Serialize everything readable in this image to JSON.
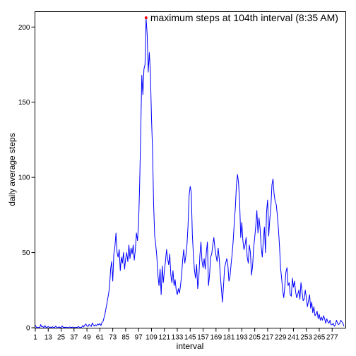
{
  "chart_data": {
    "type": "line",
    "title": "",
    "xlabel": "interval",
    "ylabel": "daily average steps",
    "xlim": [
      1,
      288
    ],
    "ylim": [
      0,
      210
    ],
    "grid": false,
    "line_color": "#0000ff",
    "marker_color": "#ff0000",
    "x_ticks": [
      1,
      13,
      25,
      37,
      49,
      61,
      73,
      85,
      97,
      109,
      121,
      133,
      145,
      157,
      169,
      181,
      193,
      205,
      217,
      229,
      241,
      253,
      265,
      277
    ],
    "x_tick_labels": [
      "1",
      "13",
      "25",
      "37",
      "49",
      "61",
      "73",
      "85",
      "97",
      "109",
      "121",
      "133",
      "145",
      "157",
      "169",
      "181",
      "193",
      "205",
      "217",
      "229",
      "241",
      "253",
      "265",
      "277"
    ],
    "y_ticks": [
      0,
      50,
      100,
      150,
      200
    ],
    "y_tick_labels": [
      "0",
      "50",
      "100",
      "150",
      "200"
    ],
    "series": [
      {
        "points": [
          [
            1,
            1.7
          ],
          [
            2,
            0.3
          ],
          [
            3,
            0.1
          ],
          [
            4,
            0.2
          ],
          [
            5,
            0.1
          ],
          [
            6,
            2.1
          ],
          [
            7,
            0.5
          ],
          [
            8,
            0.9
          ],
          [
            9,
            0
          ],
          [
            10,
            1.5
          ],
          [
            11,
            0.2
          ],
          [
            12,
            0.3
          ],
          [
            13,
            0.9
          ],
          [
            14,
            0.2
          ],
          [
            15,
            0.4
          ],
          [
            16,
            0.1
          ],
          [
            17,
            0.7
          ],
          [
            18,
            0
          ],
          [
            19,
            0.3
          ],
          [
            20,
            1.1
          ],
          [
            21,
            0.2
          ],
          [
            22,
            0
          ],
          [
            23,
            0.6
          ],
          [
            24,
            0.1
          ],
          [
            25,
            0.3
          ],
          [
            26,
            1.2
          ],
          [
            27,
            0.1
          ],
          [
            28,
            0.3
          ],
          [
            29,
            0.2
          ],
          [
            30,
            0.4
          ],
          [
            31,
            0.1
          ],
          [
            32,
            0.2
          ],
          [
            33,
            0.5
          ],
          [
            34,
            0.1
          ],
          [
            35,
            0.3
          ],
          [
            36,
            0.4
          ],
          [
            37,
            0.2
          ],
          [
            38,
            0.1
          ],
          [
            39,
            0.3
          ],
          [
            40,
            0.2
          ],
          [
            41,
            0.8
          ],
          [
            42,
            0.3
          ],
          [
            43,
            0.1
          ],
          [
            44,
            0.2
          ],
          [
            45,
            1.5
          ],
          [
            46,
            0.5
          ],
          [
            47,
            1.8
          ],
          [
            48,
            2.5
          ],
          [
            49,
            1.2
          ],
          [
            50,
            0.8
          ],
          [
            51,
            2.2
          ],
          [
            52,
            1.5
          ],
          [
            53,
            0.9
          ],
          [
            54,
            3.2
          ],
          [
            55,
            1.8
          ],
          [
            56,
            1.1
          ],
          [
            57,
            2.0
          ],
          [
            58,
            1.4
          ],
          [
            59,
            2.6
          ],
          [
            60,
            1.9
          ],
          [
            61,
            2.8
          ],
          [
            62,
            1.5
          ],
          [
            63,
            3.5
          ],
          [
            64,
            4.2
          ],
          [
            65,
            7
          ],
          [
            66,
            10
          ],
          [
            67,
            14
          ],
          [
            68,
            18
          ],
          [
            69,
            22
          ],
          [
            70,
            27
          ],
          [
            71,
            39
          ],
          [
            72,
            44
          ],
          [
            73,
            31
          ],
          [
            74,
            49
          ],
          [
            75,
            54
          ],
          [
            76,
            63
          ],
          [
            77,
            50
          ],
          [
            78,
            47
          ],
          [
            79,
            52
          ],
          [
            80,
            38
          ],
          [
            81,
            47
          ],
          [
            82,
            43
          ],
          [
            83,
            50
          ],
          [
            84,
            39
          ],
          [
            85,
            46
          ],
          [
            86,
            50
          ],
          [
            87,
            44
          ],
          [
            88,
            55
          ],
          [
            89,
            46
          ],
          [
            90,
            53
          ],
          [
            91,
            49
          ],
          [
            92,
            55
          ],
          [
            93,
            45
          ],
          [
            94,
            52
          ],
          [
            95,
            63
          ],
          [
            96,
            58
          ],
          [
            97,
            69
          ],
          [
            98,
            95
          ],
          [
            99,
            130
          ],
          [
            100,
            168
          ],
          [
            101,
            155
          ],
          [
            102,
            172
          ],
          [
            103,
            175
          ],
          [
            104,
            206
          ],
          [
            105,
            195
          ],
          [
            106,
            170
          ],
          [
            107,
            183
          ],
          [
            108,
            170
          ],
          [
            109,
            140
          ],
          [
            110,
            118
          ],
          [
            111,
            82
          ],
          [
            112,
            61
          ],
          [
            113,
            55
          ],
          [
            114,
            47
          ],
          [
            115,
            35
          ],
          [
            116,
            28
          ],
          [
            117,
            39
          ],
          [
            118,
            22
          ],
          [
            119,
            41
          ],
          [
            120,
            30
          ],
          [
            121,
            38
          ],
          [
            122,
            44
          ],
          [
            123,
            52
          ],
          [
            124,
            46
          ],
          [
            125,
            42
          ],
          [
            126,
            49
          ],
          [
            127,
            35
          ],
          [
            128,
            30
          ],
          [
            129,
            38
          ],
          [
            130,
            28
          ],
          [
            131,
            32
          ],
          [
            132,
            25
          ],
          [
            133,
            22
          ],
          [
            134,
            26
          ],
          [
            135,
            23
          ],
          [
            136,
            28
          ],
          [
            137,
            35
          ],
          [
            138,
            45
          ],
          [
            139,
            52
          ],
          [
            140,
            43
          ],
          [
            141,
            48
          ],
          [
            142,
            55
          ],
          [
            143,
            68
          ],
          [
            144,
            88
          ],
          [
            145,
            94
          ],
          [
            146,
            90
          ],
          [
            147,
            62
          ],
          [
            148,
            48
          ],
          [
            149,
            38
          ],
          [
            150,
            33
          ],
          [
            151,
            42
          ],
          [
            152,
            26
          ],
          [
            153,
            33
          ],
          [
            154,
            48
          ],
          [
            155,
            57
          ],
          [
            156,
            44
          ],
          [
            157,
            40
          ],
          [
            158,
            46
          ],
          [
            159,
            39
          ],
          [
            160,
            50
          ],
          [
            161,
            57
          ],
          [
            162,
            28
          ],
          [
            163,
            35
          ],
          [
            164,
            47
          ],
          [
            165,
            49
          ],
          [
            166,
            55
          ],
          [
            167,
            60
          ],
          [
            168,
            53
          ],
          [
            169,
            48
          ],
          [
            170,
            44
          ],
          [
            171,
            53
          ],
          [
            172,
            46
          ],
          [
            173,
            35
          ],
          [
            174,
            26
          ],
          [
            175,
            17
          ],
          [
            176,
            28
          ],
          [
            177,
            40
          ],
          [
            178,
            43
          ],
          [
            179,
            46
          ],
          [
            180,
            42
          ],
          [
            181,
            31
          ],
          [
            182,
            34
          ],
          [
            183,
            42
          ],
          [
            184,
            49
          ],
          [
            185,
            58
          ],
          [
            186,
            70
          ],
          [
            187,
            80
          ],
          [
            188,
            95
          ],
          [
            189,
            102
          ],
          [
            190,
            96
          ],
          [
            191,
            83
          ],
          [
            192,
            60
          ],
          [
            193,
            70
          ],
          [
            194,
            58
          ],
          [
            195,
            52
          ],
          [
            196,
            55
          ],
          [
            197,
            60
          ],
          [
            198,
            47
          ],
          [
            199,
            43
          ],
          [
            200,
            55
          ],
          [
            201,
            50
          ],
          [
            202,
            35
          ],
          [
            203,
            41
          ],
          [
            204,
            53
          ],
          [
            205,
            60
          ],
          [
            206,
            68
          ],
          [
            207,
            78
          ],
          [
            208,
            63
          ],
          [
            209,
            73
          ],
          [
            210,
            66
          ],
          [
            211,
            54
          ],
          [
            212,
            47
          ],
          [
            213,
            58
          ],
          [
            214,
            67
          ],
          [
            215,
            50
          ],
          [
            216,
            77
          ],
          [
            217,
            85
          ],
          [
            218,
            61
          ],
          [
            219,
            72
          ],
          [
            220,
            80
          ],
          [
            221,
            95
          ],
          [
            222,
            99
          ],
          [
            223,
            89
          ],
          [
            224,
            84
          ],
          [
            225,
            82
          ],
          [
            226,
            75
          ],
          [
            227,
            66
          ],
          [
            228,
            55
          ],
          [
            229,
            40
          ],
          [
            230,
            33
          ],
          [
            231,
            25
          ],
          [
            232,
            20
          ],
          [
            233,
            28
          ],
          [
            234,
            37
          ],
          [
            235,
            40
          ],
          [
            236,
            28
          ],
          [
            237,
            30
          ],
          [
            238,
            22
          ],
          [
            239,
            21
          ],
          [
            240,
            33
          ],
          [
            241,
            27
          ],
          [
            242,
            31
          ],
          [
            243,
            24
          ],
          [
            244,
            20
          ],
          [
            245,
            22
          ],
          [
            246,
            25
          ],
          [
            247,
            19
          ],
          [
            248,
            30
          ],
          [
            249,
            24
          ],
          [
            250,
            18
          ],
          [
            251,
            19
          ],
          [
            252,
            25
          ],
          [
            253,
            20
          ],
          [
            254,
            14
          ],
          [
            255,
            18
          ],
          [
            256,
            22
          ],
          [
            257,
            13
          ],
          [
            258,
            17
          ],
          [
            259,
            10
          ],
          [
            260,
            14
          ],
          [
            261,
            8
          ],
          [
            262,
            9
          ],
          [
            263,
            11
          ],
          [
            264,
            6
          ],
          [
            265,
            9
          ],
          [
            266,
            5
          ],
          [
            267,
            7
          ],
          [
            268,
            5
          ],
          [
            269,
            8
          ],
          [
            270,
            6
          ],
          [
            271,
            3
          ],
          [
            272,
            6
          ],
          [
            273,
            4
          ],
          [
            274,
            3
          ],
          [
            275,
            5
          ],
          [
            276,
            2
          ],
          [
            277,
            2
          ],
          [
            278,
            3
          ],
          [
            279,
            1
          ],
          [
            280,
            2
          ],
          [
            281,
            5
          ],
          [
            282,
            3
          ],
          [
            283,
            2
          ],
          [
            284,
            3
          ],
          [
            285,
            5
          ],
          [
            286,
            4
          ],
          [
            287,
            3
          ],
          [
            288,
            1
          ]
        ]
      }
    ],
    "max_point": {
      "x": 104,
      "y": 206.2
    },
    "annotation": "maximum steps at 104th interval (8:35 AM)"
  }
}
